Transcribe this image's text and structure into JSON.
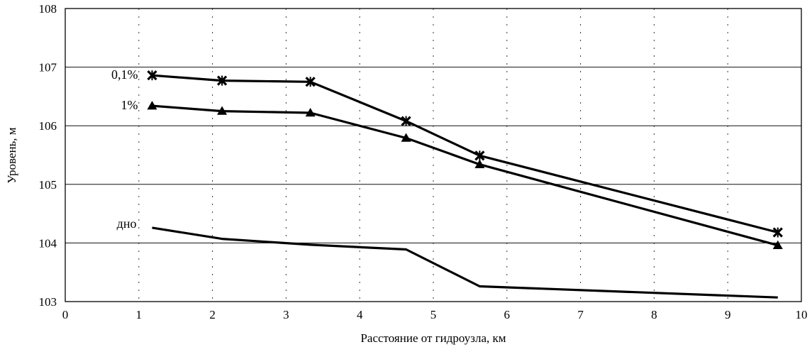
{
  "chart_data": {
    "type": "line",
    "xlabel": "Расстояние от гидроузла, км",
    "ylabel": "Уровень, м",
    "xlim": [
      0,
      10
    ],
    "ylim": [
      103,
      108
    ],
    "x_ticks": [
      "0",
      "1",
      "2",
      "3",
      "4",
      "5",
      "6",
      "7",
      "8",
      "9",
      "10"
    ],
    "y_ticks": [
      "103",
      "104",
      "105",
      "106",
      "107",
      "108"
    ],
    "grid": true,
    "series": [
      {
        "name": "0,1%",
        "marker": "asterisk",
        "x": [
          1.18,
          2.13,
          3.33,
          4.63,
          5.63,
          9.68
        ],
        "y": [
          106.86,
          106.77,
          106.75,
          106.08,
          105.49,
          104.18
        ]
      },
      {
        "name": "1%",
        "marker": "triangle",
        "x": [
          1.18,
          2.13,
          3.33,
          4.63,
          5.63,
          9.68
        ],
        "y": [
          106.34,
          106.25,
          106.22,
          105.79,
          105.34,
          103.96
        ]
      },
      {
        "name": "дно",
        "marker": "none",
        "x": [
          1.18,
          2.13,
          3.33,
          4.63,
          5.63,
          9.68
        ],
        "y": [
          104.26,
          104.07,
          103.97,
          103.89,
          103.26,
          103.07
        ]
      }
    ]
  }
}
